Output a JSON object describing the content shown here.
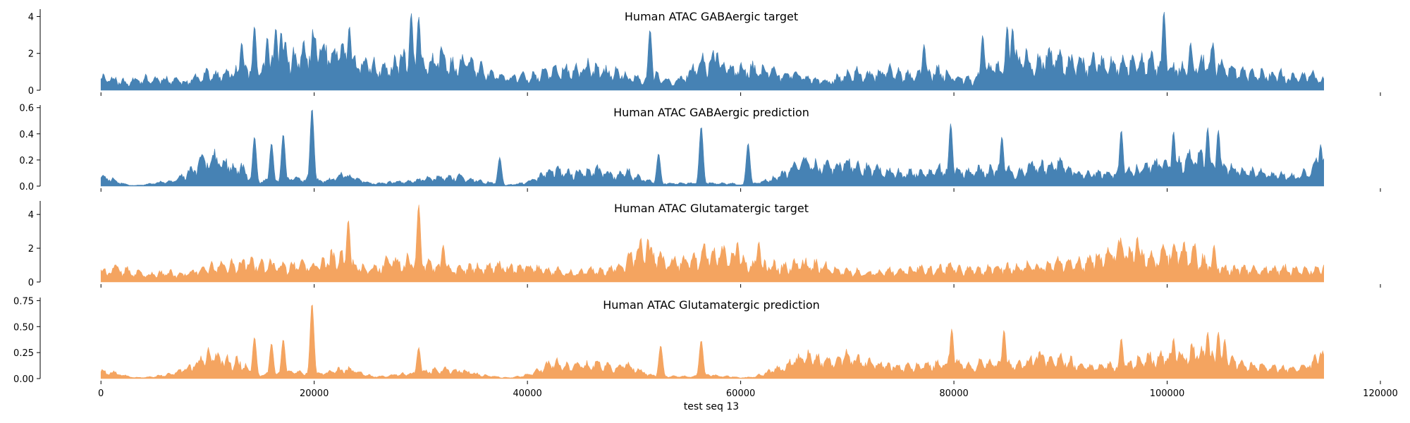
{
  "chart_data": [
    {
      "type": "area",
      "title": "Human ATAC GABAergic target",
      "color": "#4682b4",
      "ylim": [
        0,
        4.4
      ],
      "yticks": [
        0,
        2,
        4
      ],
      "ytick_labels": [
        "0",
        "2",
        "4"
      ],
      "x_extent": [
        0,
        114688
      ],
      "series": [
        {
          "baseline": [
            0.6,
            0.65,
            0.5,
            0.4,
            0.5,
            0.6,
            0.5,
            0.6,
            0.5,
            0.55,
            0.4,
            0.6,
            0.9,
            0.8,
            0.7,
            0.9,
            1.0,
            1.1,
            1.2,
            1.0,
            1.3,
            1.9,
            1.7,
            1.5,
            2.0,
            2.4,
            2.3,
            2.0,
            1.8,
            1.5,
            1.3,
            1.3,
            1.2,
            1.0,
            1.1,
            1.6,
            1.4,
            1.2,
            1.3,
            1.5,
            1.6,
            1.3,
            1.2,
            1.6,
            1.2,
            0.9,
            0.8,
            0.7,
            0.6,
            0.7,
            0.8,
            0.7,
            0.9,
            1.0,
            1.1,
            1.0,
            1.0,
            1.2,
            1.0,
            0.9,
            1.0,
            0.8,
            0.7,
            0.6,
            0.6,
            0.7,
            0.5,
            0.4,
            0.6,
            1.0,
            1.3,
            1.4,
            1.5,
            1.2,
            1.1,
            1.0,
            1.1,
            1.0,
            1.0,
            0.9,
            0.7,
            0.8,
            0.7,
            0.6,
            0.5,
            0.4,
            0.6,
            0.8,
            0.9,
            0.8,
            0.7,
            0.9,
            1.0,
            0.9,
            0.8,
            0.7,
            0.8,
            0.9,
            1.0,
            0.8,
            0.7,
            0.6,
            0.5,
            0.9,
            1.2,
            1.1,
            1.2,
            1.6,
            1.5,
            1.4,
            1.6,
            1.8,
            1.5,
            1.3,
            1.4,
            1.3,
            1.4,
            1.5,
            1.3,
            1.2,
            1.3,
            1.4,
            1.6,
            1.4,
            1.3,
            1.2,
            1.1,
            1.0,
            1.2,
            1.4,
            1.6,
            1.3,
            1.1,
            1.0,
            0.9,
            0.8,
            0.8,
            0.7,
            0.8,
            0.6,
            0.7,
            0.8,
            0.7,
            0.6
          ],
          "peaks": [
            [
              13200,
              2.6
            ],
            [
              14400,
              3.5
            ],
            [
              15600,
              2.9
            ],
            [
              16400,
              3.4
            ],
            [
              16900,
              3.2
            ],
            [
              17300,
              2.7
            ],
            [
              22600,
              2.6
            ],
            [
              23300,
              3.5
            ],
            [
              29100,
              4.2
            ],
            [
              29800,
              4.0
            ],
            [
              51500,
              3.3
            ],
            [
              57800,
              2.1
            ],
            [
              77200,
              2.5
            ],
            [
              82700,
              3.0
            ],
            [
              85000,
              3.5
            ],
            [
              85500,
              3.4
            ],
            [
              99700,
              4.3
            ],
            [
              102200,
              2.6
            ],
            [
              104300,
              2.6
            ]
          ],
          "seed": 11,
          "noise": 0.55
        }
      ]
    },
    {
      "type": "area",
      "title": "Human ATAC GABAergic prediction",
      "color": "#4682b4",
      "ylim": [
        0,
        0.62
      ],
      "yticks": [
        0,
        0.2,
        0.4,
        0.6
      ],
      "ytick_labels": [
        "0.0",
        "0.2",
        "0.4",
        "0.6"
      ],
      "x_extent": [
        0,
        114688
      ],
      "series": [
        {
          "baseline": [
            0.06,
            0.06,
            0.03,
            0.01,
            0.005,
            0.01,
            0.02,
            0.03,
            0.03,
            0.06,
            0.1,
            0.14,
            0.2,
            0.22,
            0.19,
            0.13,
            0.15,
            0.06,
            0.03,
            0.04,
            0.04,
            0.04,
            0.06,
            0.05,
            0.05,
            0.04,
            0.04,
            0.07,
            0.08,
            0.06,
            0.04,
            0.02,
            0.02,
            0.03,
            0.03,
            0.03,
            0.04,
            0.05,
            0.06,
            0.06,
            0.06,
            0.07,
            0.05,
            0.04,
            0.03,
            0.02,
            0.01,
            0.01,
            0.02,
            0.03,
            0.06,
            0.1,
            0.12,
            0.1,
            0.09,
            0.1,
            0.1,
            0.12,
            0.09,
            0.07,
            0.12,
            0.08,
            0.05,
            0.03,
            0.02,
            0.02,
            0.02,
            0.02,
            0.02,
            0.03,
            0.02,
            0.02,
            0.02,
            0.01,
            0.01,
            0.02,
            0.04,
            0.06,
            0.08,
            0.12,
            0.16,
            0.18,
            0.15,
            0.16,
            0.14,
            0.17,
            0.16,
            0.14,
            0.12,
            0.12,
            0.1,
            0.1,
            0.08,
            0.1,
            0.1,
            0.1,
            0.12,
            0.12,
            0.12,
            0.1,
            0.1,
            0.12,
            0.11,
            0.12,
            0.11,
            0.1,
            0.13,
            0.16,
            0.15,
            0.14,
            0.16,
            0.12,
            0.1,
            0.1,
            0.09,
            0.1,
            0.1,
            0.11,
            0.11,
            0.14,
            0.15,
            0.16,
            0.15,
            0.16,
            0.18,
            0.2,
            0.2,
            0.16,
            0.14,
            0.14,
            0.12,
            0.1,
            0.1,
            0.1,
            0.08,
            0.08,
            0.07,
            0.07,
            0.1,
            0.14,
            0.2
          ],
          "peaks": [
            [
              14400,
              0.38
            ],
            [
              16000,
              0.33
            ],
            [
              17100,
              0.4
            ],
            [
              19800,
              0.6
            ],
            [
              37400,
              0.22
            ],
            [
              52300,
              0.25
            ],
            [
              56300,
              0.46
            ],
            [
              60700,
              0.33
            ],
            [
              79700,
              0.48
            ],
            [
              84500,
              0.38
            ],
            [
              95700,
              0.43
            ],
            [
              100600,
              0.42
            ],
            [
              103800,
              0.45
            ],
            [
              104800,
              0.43
            ],
            [
              114400,
              0.32
            ]
          ],
          "seed": 23,
          "noise": 0.5
        }
      ]
    },
    {
      "type": "area",
      "title": "Human ATAC Glutamatergic target",
      "color": "#f4a460",
      "ylim": [
        0,
        4.8
      ],
      "yticks": [
        0,
        2,
        4
      ],
      "ytick_labels": [
        "0",
        "2",
        "4"
      ],
      "x_extent": [
        0,
        114688
      ],
      "series": [
        {
          "baseline": [
            0.6,
            0.6,
            0.7,
            0.6,
            0.5,
            0.4,
            0.4,
            0.5,
            0.5,
            0.4,
            0.5,
            0.7,
            0.8,
            0.8,
            0.9,
            1.0,
            1.0,
            1.1,
            1.0,
            0.9,
            0.9,
            0.8,
            0.9,
            0.9,
            0.8,
            1.1,
            1.3,
            1.4,
            1.0,
            0.8,
            0.8,
            0.8,
            1.0,
            1.1,
            1.1,
            1.2,
            1.2,
            0.9,
            0.8,
            0.7,
            0.7,
            0.7,
            0.8,
            0.8,
            0.9,
            0.9,
            0.8,
            0.8,
            0.8,
            0.8,
            0.7,
            0.6,
            0.6,
            0.5,
            0.5,
            0.6,
            0.6,
            0.6,
            0.8,
            1.0,
            1.6,
            1.7,
            1.6,
            1.4,
            1.2,
            1.1,
            1.1,
            1.3,
            1.5,
            1.5,
            1.7,
            1.6,
            1.2,
            1.0,
            0.9,
            0.9,
            0.9,
            0.9,
            0.9,
            1.0,
            1.0,
            0.9,
            0.8,
            0.7,
            0.7,
            0.6,
            0.5,
            0.5,
            0.6,
            0.7,
            0.6,
            0.7,
            0.7,
            0.7,
            0.7,
            0.8,
            0.8,
            0.7,
            0.7,
            0.7,
            0.7,
            0.8,
            0.8,
            0.8,
            0.9,
            0.9,
            0.8,
            0.9,
            1.0,
            1.0,
            1.1,
            1.1,
            1.3,
            1.5,
            1.6,
            1.8,
            1.6,
            1.4,
            1.4,
            1.5,
            1.6,
            1.8,
            1.8,
            1.5,
            1.3,
            1.0,
            0.8,
            0.7,
            0.7,
            0.8,
            0.8,
            0.7,
            0.7,
            0.7,
            0.7,
            0.7,
            0.7,
            0.7,
            0.8
          ],
          "peaks": [
            [
              23200,
              3.7
            ],
            [
              29800,
              4.6
            ],
            [
              32100,
              2.2
            ],
            [
              51300,
              2.6
            ],
            [
              59700,
              2.4
            ],
            [
              61700,
              2.4
            ],
            [
              97200,
              2.7
            ],
            [
              102600,
              2.3
            ],
            [
              104400,
              2.2
            ]
          ],
          "seed": 37,
          "noise": 0.55
        }
      ]
    },
    {
      "type": "area",
      "title": "Human ATAC Glutamatergic prediction",
      "color": "#f4a460",
      "ylim": [
        0,
        0.78
      ],
      "yticks": [
        0,
        0.25,
        0.5,
        0.75
      ],
      "ytick_labels": [
        "0.00",
        "0.25",
        "0.50",
        "0.75"
      ],
      "x_extent": [
        0,
        114688
      ],
      "series": [
        {
          "baseline": [
            0.07,
            0.06,
            0.05,
            0.02,
            0.01,
            0.01,
            0.02,
            0.03,
            0.04,
            0.07,
            0.1,
            0.14,
            0.2,
            0.22,
            0.18,
            0.14,
            0.16,
            0.07,
            0.03,
            0.04,
            0.04,
            0.05,
            0.06,
            0.05,
            0.05,
            0.05,
            0.05,
            0.08,
            0.09,
            0.07,
            0.05,
            0.02,
            0.02,
            0.03,
            0.04,
            0.04,
            0.05,
            0.06,
            0.08,
            0.08,
            0.08,
            0.08,
            0.06,
            0.04,
            0.03,
            0.02,
            0.01,
            0.01,
            0.02,
            0.04,
            0.07,
            0.12,
            0.14,
            0.12,
            0.1,
            0.12,
            0.12,
            0.14,
            0.11,
            0.09,
            0.14,
            0.1,
            0.06,
            0.03,
            0.02,
            0.02,
            0.02,
            0.02,
            0.02,
            0.04,
            0.03,
            0.02,
            0.02,
            0.01,
            0.01,
            0.02,
            0.05,
            0.08,
            0.1,
            0.14,
            0.18,
            0.2,
            0.17,
            0.18,
            0.16,
            0.2,
            0.18,
            0.16,
            0.14,
            0.13,
            0.12,
            0.12,
            0.1,
            0.11,
            0.12,
            0.12,
            0.14,
            0.14,
            0.14,
            0.12,
            0.12,
            0.14,
            0.13,
            0.14,
            0.13,
            0.12,
            0.15,
            0.19,
            0.18,
            0.17,
            0.19,
            0.15,
            0.12,
            0.12,
            0.1,
            0.12,
            0.12,
            0.13,
            0.13,
            0.16,
            0.18,
            0.2,
            0.19,
            0.2,
            0.22,
            0.24,
            0.24,
            0.2,
            0.17,
            0.17,
            0.14,
            0.12,
            0.12,
            0.12,
            0.1,
            0.1,
            0.09,
            0.09,
            0.12,
            0.17,
            0.24
          ],
          "peaks": [
            [
              14400,
              0.4
            ],
            [
              16000,
              0.34
            ],
            [
              17100,
              0.38
            ],
            [
              19800,
              0.73
            ],
            [
              29800,
              0.3
            ],
            [
              52500,
              0.32
            ],
            [
              56300,
              0.37
            ],
            [
              79800,
              0.48
            ],
            [
              84700,
              0.47
            ],
            [
              95700,
              0.39
            ],
            [
              100600,
              0.39
            ],
            [
              103800,
              0.45
            ],
            [
              104800,
              0.45
            ],
            [
              105400,
              0.38
            ],
            [
              114400,
              0.25
            ]
          ],
          "seed": 53,
          "noise": 0.5
        }
      ]
    }
  ],
  "shared_x_axis": {
    "ticks": [
      0,
      20000,
      40000,
      60000,
      80000,
      100000,
      120000
    ],
    "tick_labels": [
      "0",
      "20000",
      "40000",
      "60000",
      "80000",
      "100000",
      "120000"
    ],
    "xlim": [
      -5700,
      120000
    ],
    "xlabel": "test seq 13"
  }
}
